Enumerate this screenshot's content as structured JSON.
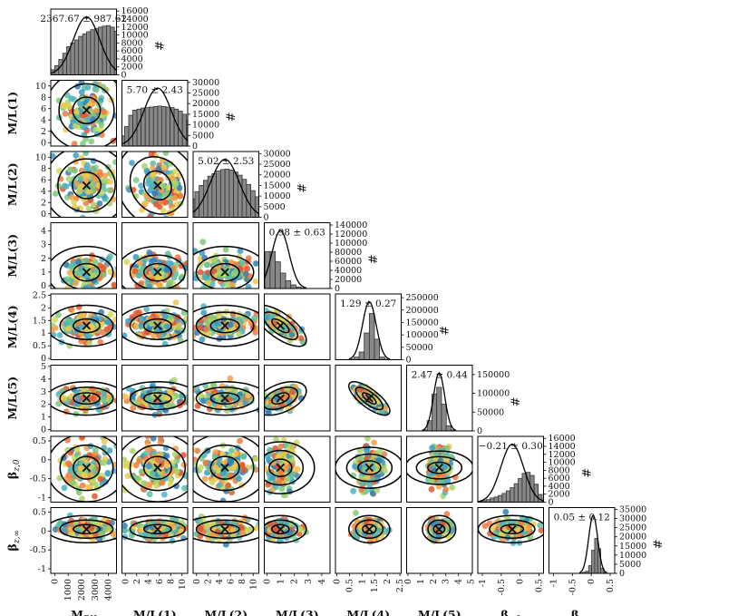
{
  "chart_data": {
    "type": "corner-plot",
    "parameters": [
      {
        "name": "M_BH",
        "label_main": "M",
        "label_sub": "BH",
        "mean": 2367.67,
        "std": 987.62,
        "stat_text": "2367.67 ± 987.62",
        "axis_ticks": [
          0,
          1000,
          2000,
          3000,
          4000
        ],
        "axis_range": [
          -300,
          4600
        ],
        "hist_ticks": [
          0,
          2000,
          4000,
          6000,
          8000,
          10000,
          12000,
          14000,
          16000
        ],
        "hist_max": 16500
      },
      {
        "name": "M/L(1)",
        "label_main": "M/L(1)",
        "label_sub": "",
        "mean": 5.7,
        "std": 2.43,
        "stat_text": "5.70 ± 2.43",
        "axis_ticks": [
          0,
          2,
          4,
          6,
          8,
          10
        ],
        "axis_range": [
          -0.6,
          11
        ],
        "hist_ticks": [
          0,
          5000,
          10000,
          15000,
          20000,
          25000,
          30000
        ],
        "hist_max": 31000
      },
      {
        "name": "M/L(2)",
        "label_main": "M/L(2)",
        "label_sub": "",
        "mean": 5.02,
        "std": 2.53,
        "stat_text": "5.02 ± 2.53",
        "axis_ticks": [
          0,
          2,
          4,
          6,
          8,
          10
        ],
        "axis_range": [
          -0.6,
          11
        ],
        "hist_ticks": [
          0,
          5000,
          10000,
          15000,
          20000,
          25000,
          30000
        ],
        "hist_max": 31000
      },
      {
        "name": "M/L(3)",
        "label_main": "M/L(3)",
        "label_sub": "",
        "mean": 0.98,
        "std": 0.63,
        "stat_text": "0.98 ± 0.63",
        "axis_ticks": [
          0,
          1,
          2,
          3,
          4
        ],
        "axis_range": [
          -0.2,
          4.6
        ],
        "hist_ticks": [
          0,
          20000,
          40000,
          60000,
          80000,
          100000,
          120000,
          140000
        ],
        "hist_max": 145000
      },
      {
        "name": "M/L(4)",
        "label_main": "M/L(4)",
        "label_sub": "",
        "mean": 1.29,
        "std": 0.27,
        "stat_text": "1.29 ± 0.27",
        "axis_ticks": [
          0.0,
          0.5,
          1.0,
          1.5,
          2.0,
          2.5
        ],
        "axis_range": [
          -0.05,
          2.55
        ],
        "hist_ticks": [
          0,
          50000,
          100000,
          150000,
          200000,
          250000
        ],
        "hist_max": 265000
      },
      {
        "name": "M/L(5)",
        "label_main": "M/L(5)",
        "label_sub": "",
        "mean": 2.47,
        "std": 0.44,
        "stat_text": "2.47 ± 0.44",
        "axis_ticks": [
          0,
          1,
          2,
          3,
          4,
          5
        ],
        "axis_range": [
          -0.1,
          5.1
        ],
        "hist_ticks": [
          0,
          50000,
          100000,
          150000
        ],
        "hist_max": 175000
      },
      {
        "name": "beta_z,0",
        "label_main": "β",
        "label_sub": "z,0",
        "mean": -0.21,
        "std": 0.3,
        "stat_text": "−0.21 ± 0.30",
        "axis_ticks": [
          -1.0,
          -0.5,
          0.0,
          0.5
        ],
        "axis_range": [
          -1.12,
          0.62
        ],
        "hist_ticks": [
          0,
          2000,
          4000,
          6000,
          8000,
          10000,
          12000,
          14000,
          16000
        ],
        "hist_max": 16500
      },
      {
        "name": "beta_z,inf",
        "label_main": "β",
        "label_sub": "z,∞",
        "mean": 0.05,
        "std": 0.12,
        "stat_text": "0.05 ± 0.12",
        "axis_ticks": [
          -1.0,
          -0.5,
          0.0,
          0.5
        ],
        "axis_range": [
          -1.12,
          0.62
        ],
        "hist_ticks": [
          0,
          5000,
          10000,
          15000,
          20000,
          25000,
          30000,
          35000
        ],
        "hist_max": 36000
      }
    ],
    "hist_shapes": {
      "M_BH": [
        0.05,
        0.1,
        0.18,
        0.3,
        0.42,
        0.55,
        0.62,
        0.68,
        0.75,
        0.8,
        0.84,
        0.88,
        0.9,
        0.93,
        0.95,
        0.96,
        0.93,
        0.85,
        0.7,
        0.5
      ],
      "M/L(1)": [
        0.04,
        0.2,
        0.38,
        0.6,
        0.7,
        0.72,
        0.74,
        0.75,
        0.76,
        0.77,
        0.78,
        0.77,
        0.76,
        0.75,
        0.72,
        0.68,
        0.62,
        0.5,
        0.35,
        0.12
      ],
      "M/L(2)": [
        0.04,
        0.18,
        0.36,
        0.5,
        0.62,
        0.72,
        0.8,
        0.85,
        0.9,
        0.93,
        0.94,
        0.92,
        0.88,
        0.82,
        0.74,
        0.64,
        0.52,
        0.4,
        0.26,
        0.08
      ],
      "M/L(3)": [
        0.05,
        0.45,
        0.72,
        0.72,
        0.52,
        0.3,
        0.15,
        0.07,
        0.03,
        0.01
      ],
      "M/L(4)": [
        0.01,
        0.05,
        0.15,
        0.52,
        0.9,
        0.4,
        0.05,
        0.01
      ],
      "M/L(5)": [
        0.02,
        0.2,
        0.72,
        0.85,
        0.52,
        0.1,
        0.02
      ],
      "beta_z,0": [
        0.01,
        0.03,
        0.05,
        0.08,
        0.1,
        0.13,
        0.17,
        0.22,
        0.28,
        0.36,
        0.46,
        0.56,
        0.58,
        0.52,
        0.35,
        0.15,
        0.04
      ],
      "beta_z,inf": [
        0.01,
        0.02,
        0.04,
        0.15,
        0.45,
        0.68,
        0.48,
        0.1,
        0.02
      ]
    },
    "hist_ylabel": "#",
    "marker": "×",
    "scatter_colors": [
      "#2f7fb8",
      "#3c9dc8",
      "#4bb3c4",
      "#5bbfa3",
      "#7ec87e",
      "#a9d46a",
      "#d4d856",
      "#f0c84c",
      "#f3a046",
      "#ef7a3e",
      "#e5552e"
    ],
    "grid": false,
    "layout": "lower-triangle"
  }
}
